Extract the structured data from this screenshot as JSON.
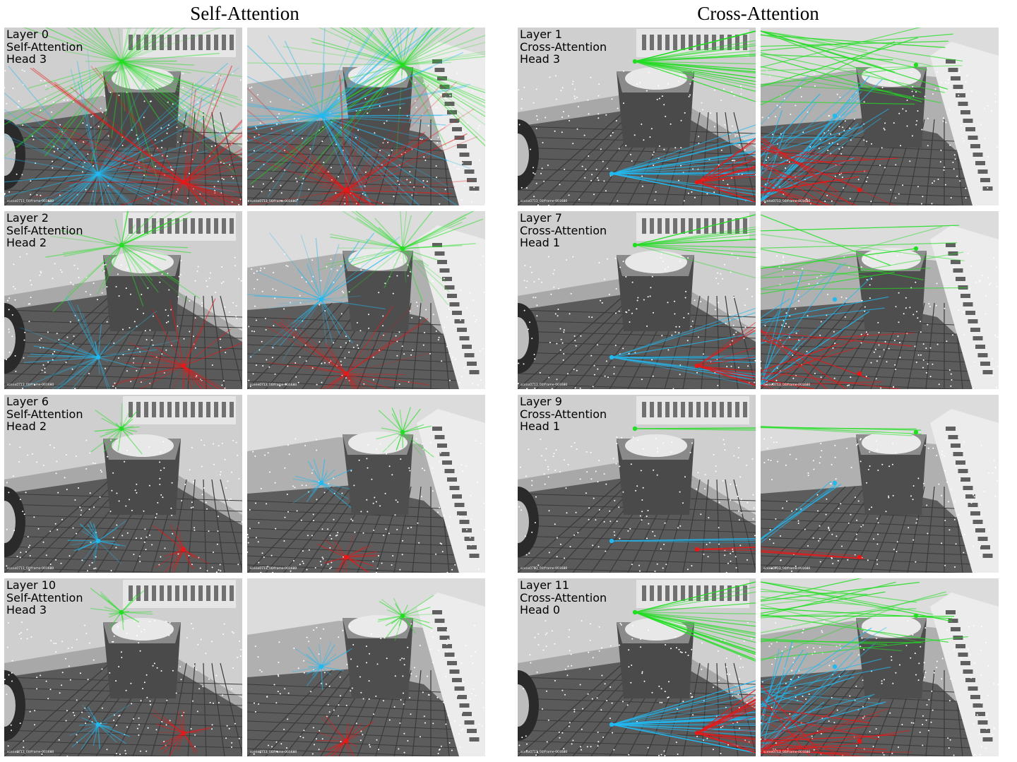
{
  "columns": [
    {
      "title": "Self-Attention",
      "kind": "self"
    },
    {
      "title": "Cross-Attention",
      "kind": "cross"
    }
  ],
  "panels": [
    {
      "col": 0,
      "row": 0,
      "layer": "Layer 0",
      "type": "Self-Attention",
      "head": "Head 3",
      "density": "dense",
      "caption_a": "scene0713_00/frame-001680",
      "caption_b": "scene0713_00/frame-001680"
    },
    {
      "col": 0,
      "row": 1,
      "layer": "Layer 2",
      "type": "Self-Attention",
      "head": "Head 2",
      "density": "medium",
      "caption_a": "scene0713_00/frame-001680",
      "caption_b": "scene0713_00/frame-001680"
    },
    {
      "col": 0,
      "row": 2,
      "layer": "Layer 6",
      "type": "Self-Attention",
      "head": "Head 2",
      "density": "local",
      "caption_a": "scene0713_00/frame-001680",
      "caption_b": "scene0713_00/frame-001680"
    },
    {
      "col": 0,
      "row": 3,
      "layer": "Layer 10",
      "type": "Self-Attention",
      "head": "Head 3",
      "density": "local",
      "caption_a": "scene0713_00/frame-001680",
      "caption_b": "scene0713_00/frame-001680"
    },
    {
      "col": 1,
      "row": 0,
      "layer": "Layer 1",
      "type": "Cross-Attention",
      "head": "Head 3",
      "density": "dense",
      "caption_a": "scene0713_00/frame-001680",
      "caption_b": "scene0713_00/frame-001680"
    },
    {
      "col": 1,
      "row": 1,
      "layer": "Layer 7",
      "type": "Cross-Attention",
      "head": "Head 1",
      "density": "medium",
      "caption_a": "scene0713_00/frame-001680",
      "caption_b": "scene0713_00/frame-001680"
    },
    {
      "col": 1,
      "row": 2,
      "layer": "Layer 9",
      "type": "Cross-Attention",
      "head": "Head 1",
      "density": "sparse",
      "caption_a": "scene0713_00/frame-001680",
      "caption_b": "scene0713_00/frame-001680"
    },
    {
      "col": 1,
      "row": 3,
      "layer": "Layer 11",
      "type": "Cross-Attention",
      "head": "Head 0",
      "density": "dense",
      "caption_a": "scene0713_00/frame-001680",
      "caption_b": "scene0713_00/frame-001680"
    }
  ],
  "colors": {
    "green": "#22dd22",
    "blue": "#22b8f0",
    "red": "#e81818",
    "keypoint": "#ffffff"
  }
}
